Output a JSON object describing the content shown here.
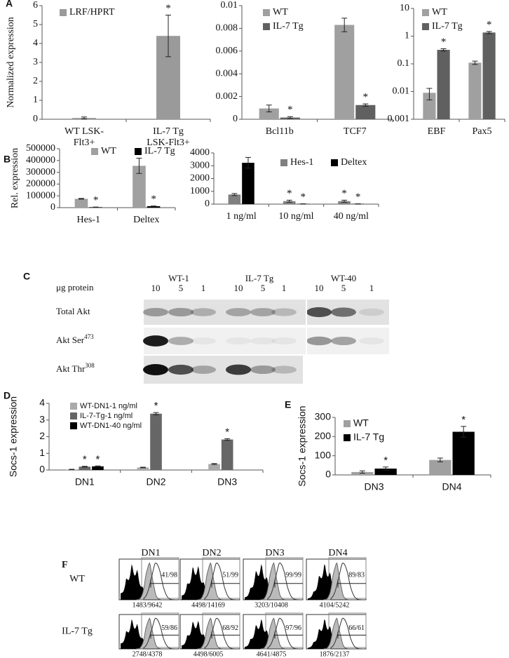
{
  "chart_data": [
    {
      "type": "bar",
      "panel": "A",
      "ylabel": "Normalized expression",
      "categories": [
        "WT LSK-\nFlt3+",
        "IL-7 Tg\nLSK-Flt3+"
      ],
      "series": [
        {
          "name": "LRF/HPRT",
          "color": "#9a9a9a",
          "values": [
            0.07,
            4.4
          ],
          "errors": [
            0.05,
            1.1
          ],
          "starred": [
            false,
            true
          ]
        }
      ],
      "star": "*",
      "ylim": [
        0,
        6
      ],
      "yticks": [
        0,
        1,
        2,
        3,
        4,
        5,
        6
      ]
    },
    {
      "type": "bar",
      "categories": [
        "Bcl11b",
        "TCF7"
      ],
      "series": [
        {
          "name": "WT",
          "color": "#a0a0a0",
          "values": [
            0.00095,
            0.0083
          ],
          "errors": [
            0.0003,
            0.0006
          ],
          "starred": [
            false,
            false
          ]
        },
        {
          "name": "IL-7 Tg",
          "color": "#606060",
          "values": [
            0.00015,
            0.00125
          ],
          "errors": [
            8e-05,
            0.0001
          ],
          "starred": [
            true,
            true
          ]
        }
      ],
      "star": "*",
      "ylim": [
        0,
        0.01
      ],
      "yticks": [
        0,
        0.002,
        0.004,
        0.006,
        0.008,
        0.01
      ]
    },
    {
      "type": "bar",
      "log_scale": true,
      "categories": [
        "EBF",
        "Pax5"
      ],
      "series": [
        {
          "name": "WT",
          "color": "#a0a0a0",
          "values": [
            0.009,
            0.11
          ],
          "errors": [
            0.004,
            0.015
          ],
          "starred": [
            false,
            false
          ]
        },
        {
          "name": "IL-7 Tg",
          "color": "#606060",
          "values": [
            0.32,
            1.35
          ],
          "errors": [
            0.03,
            0.12
          ],
          "starred": [
            true,
            true
          ]
        }
      ],
      "star": "*",
      "ylim": [
        0.001,
        10
      ],
      "yticks": [
        0.001,
        0.01,
        0.1,
        1,
        10
      ]
    },
    {
      "type": "bar",
      "panel": "B",
      "ylabel": "Rel. expression",
      "categories": [
        "Hes-1",
        "Deltex"
      ],
      "series": [
        {
          "name": "WT",
          "color": "#a0a0a0",
          "values": [
            75000,
            355000
          ],
          "errors": [
            3000,
            65000
          ],
          "starred": [
            false,
            false
          ]
        },
        {
          "name": "IL-7 Tg",
          "color": "#000000",
          "values": [
            4000,
            12000
          ],
          "errors": [
            1000,
            2000
          ],
          "starred": [
            true,
            true
          ]
        }
      ],
      "star": "*",
      "ylim": [
        0,
        500000
      ],
      "yticks": [
        0,
        100000,
        200000,
        300000,
        400000,
        500000
      ]
    },
    {
      "type": "bar",
      "categories": [
        "1 ng/ml",
        "10 ng/ml",
        "40 ng/ml"
      ],
      "series": [
        {
          "name": "Hes-1",
          "color": "#808080",
          "values": [
            750,
            230,
            230
          ],
          "errors": [
            80,
            80,
            80
          ],
          "starred": [
            false,
            true,
            true
          ]
        },
        {
          "name": "Deltex",
          "color": "#000000",
          "values": [
            3230,
            20,
            20
          ],
          "errors": [
            420,
            10,
            10
          ],
          "starred": [
            false,
            true,
            true
          ]
        }
      ],
      "star": "*",
      "ylim": [
        0,
        4000
      ],
      "yticks": [
        0,
        1000,
        2000,
        3000,
        4000
      ]
    },
    {
      "type": "bar",
      "panel": "D",
      "ylabel": "Socs-1 expression",
      "categories": [
        "DN1",
        "DN2",
        "DN3"
      ],
      "series": [
        {
          "name": "WT-DN1-1 ng/ml",
          "color": "#aaaaaa",
          "values": [
            0.03,
            0.15,
            0.36
          ],
          "errors": [
            0.01,
            0.02,
            0.03
          ],
          "starred": [
            false,
            false,
            false
          ]
        },
        {
          "name": "IL-7-Tg-1 ng/ml",
          "color": "#666666",
          "values": [
            0.2,
            3.38,
            1.83
          ],
          "errors": [
            0.02,
            0.07,
            0.05
          ],
          "starred": [
            true,
            true,
            true
          ]
        },
        {
          "name": "WT-DN1-40 ng/ml",
          "color": "#000000",
          "values": [
            0.22,
            null,
            null
          ],
          "errors": [
            0.02,
            null,
            null
          ],
          "starred": [
            true,
            false,
            false
          ]
        }
      ],
      "star": "*",
      "ylim": [
        0,
        4
      ],
      "yticks": [
        0,
        1,
        2,
        3,
        4
      ]
    },
    {
      "type": "bar",
      "panel": "E",
      "ylabel": "Socs-1 expression",
      "categories": [
        "DN3",
        "DN4"
      ],
      "series": [
        {
          "name": "WT",
          "color": "#a0a0a0",
          "values": [
            15,
            78
          ],
          "errors": [
            6,
            10
          ],
          "starred": [
            false,
            false
          ]
        },
        {
          "name": "IL-7 Tg",
          "color": "#000000",
          "values": [
            33,
            225
          ],
          "errors": [
            8,
            28
          ],
          "starred": [
            true,
            true
          ]
        }
      ],
      "star": "*",
      "ylim": [
        0,
        300
      ],
      "yticks": [
        0,
        100,
        200,
        300
      ]
    }
  ],
  "blot": {
    "panel": "C",
    "unit_label": "μg protein",
    "groups": [
      {
        "name": "WT-1",
        "lanes": [
          "10",
          "5",
          "1"
        ]
      },
      {
        "name": "IL-7 Tg",
        "lanes": [
          "10",
          "5",
          "1"
        ]
      },
      {
        "name": "WT-40",
        "lanes": [
          "10",
          "5",
          "1"
        ]
      }
    ],
    "rows": [
      {
        "label": "Total Akt"
      },
      {
        "label": "Akt Ser",
        "sup": "473"
      },
      {
        "label": "Akt Thr",
        "sup": "308"
      }
    ]
  },
  "flow": {
    "panel": "F",
    "columns": [
      "DN1",
      "DN2",
      "DN3",
      "DN4"
    ],
    "rows": [
      {
        "label": "WT",
        "cells": [
          {
            "gate": "41/98",
            "count": "1483/9642"
          },
          {
            "gate": "51/99",
            "count": "4498/14169"
          },
          {
            "gate": "99/99",
            "count": "3203/10408"
          },
          {
            "gate": "89/83",
            "count": "4104/5242"
          }
        ]
      },
      {
        "label": "IL-7 Tg",
        "cells": [
          {
            "gate": "59/86",
            "count": "2748/4378"
          },
          {
            "gate": "68/92",
            "count": "4498/6005"
          },
          {
            "gate": "97/96",
            "count": "4641/4875"
          },
          {
            "gate": "66/61",
            "count": "1876/2137"
          }
        ]
      }
    ]
  }
}
